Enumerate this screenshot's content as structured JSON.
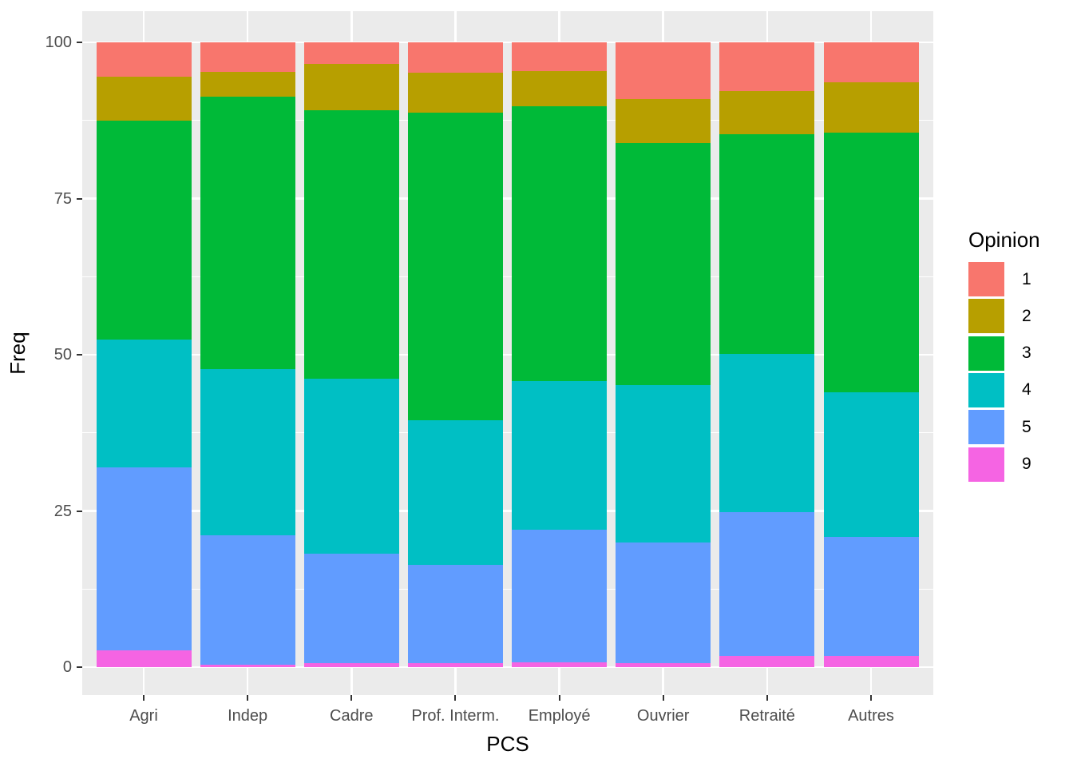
{
  "chart_data": {
    "type": "bar",
    "variant": "stacked-percent",
    "title": "",
    "xlabel": "PCS",
    "ylabel": "Freq",
    "ylim": [
      0,
      100
    ],
    "yticks": [
      0,
      25,
      50,
      75,
      100
    ],
    "minor_gridlines": [
      12.5,
      37.5,
      62.5,
      87.5
    ],
    "grid": true,
    "categories": [
      "Agri",
      "Indep",
      "Cadre",
      "Prof. Interm.",
      "Employé",
      "Ouvrier",
      "Retraité",
      "Autres"
    ],
    "legend": {
      "title": "Opinion",
      "position": "right",
      "entries": [
        {
          "label": "1",
          "color": "#F8766D"
        },
        {
          "label": "2",
          "color": "#B79F00"
        },
        {
          "label": "3",
          "color": "#00BA38"
        },
        {
          "label": "4",
          "color": "#00BFC4"
        },
        {
          "label": "5",
          "color": "#619CFF"
        },
        {
          "label": "9",
          "color": "#F564E3"
        }
      ]
    },
    "stack_order_bottom_to_top": [
      "9",
      "5",
      "4",
      "3",
      "2",
      "1"
    ],
    "series": [
      {
        "name": "9",
        "color": "#F564E3",
        "values": [
          2.7,
          0.4,
          0.7,
          0.6,
          0.8,
          0.6,
          1.8,
          1.8
        ]
      },
      {
        "name": "5",
        "color": "#619CFF",
        "values": [
          29.3,
          20.7,
          17.5,
          15.8,
          21.2,
          19.4,
          23.0,
          19.0
        ]
      },
      {
        "name": "4",
        "color": "#00BFC4",
        "values": [
          20.4,
          26.6,
          28.0,
          23.1,
          23.8,
          25.2,
          25.3,
          23.2
        ]
      },
      {
        "name": "3",
        "color": "#00BA38",
        "values": [
          35.1,
          43.6,
          43.0,
          49.2,
          44.0,
          38.7,
          35.2,
          41.6
        ]
      },
      {
        "name": "2",
        "color": "#B79F00",
        "values": [
          7.0,
          4.0,
          7.4,
          6.5,
          5.6,
          7.0,
          6.9,
          8.0
        ]
      },
      {
        "name": "1",
        "color": "#F8766D",
        "values": [
          5.5,
          4.7,
          3.4,
          4.8,
          4.6,
          9.1,
          7.8,
          6.4
        ]
      }
    ],
    "panel_background": "#EBEBEB",
    "grid_color": "#FFFFFF",
    "tick_label_color": "#4D4D4D",
    "axis_title_color": "#000000"
  }
}
